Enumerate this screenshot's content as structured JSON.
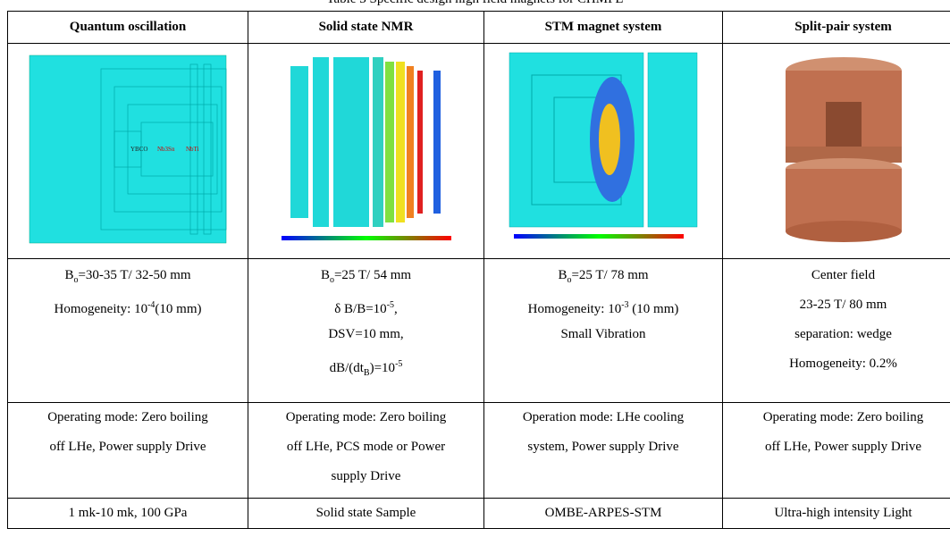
{
  "table": {
    "caption": "Table 3 Specific design high field magnets for CHMFL",
    "header": [
      "Quantum oscillation",
      "Solid state NMR",
      "STM magnet system",
      "Split-pair system"
    ],
    "image_labels": [
      "YBCO",
      "Nb3Sn",
      "NbTi"
    ],
    "specs": [
      [
        [
          {
            "text": "B"
          },
          {
            "sub": "o"
          },
          {
            "text": "=30-35 T/ 32-50 mm"
          }
        ],
        [
          {
            "text": "Homogeneity: 10"
          },
          {
            "sup": "-4"
          },
          {
            "text": "(10 mm)"
          }
        ]
      ],
      [
        [
          {
            "text": "B"
          },
          {
            "sub": "o"
          },
          {
            "text": "=25 T/ 54 mm"
          }
        ],
        [
          {
            "text": "δ B/B=10"
          },
          {
            "sup": "-5"
          },
          {
            "text": ","
          }
        ],
        [
          {
            "text": "DSV=10 mm,"
          }
        ],
        [
          {
            "text": "dB/(dt"
          },
          {
            "sub": "B"
          },
          {
            "text": ")=10"
          },
          {
            "sup": "-5"
          }
        ]
      ],
      [
        [
          {
            "text": "B"
          },
          {
            "sub": "o"
          },
          {
            "text": "=25 T/ 78 mm"
          }
        ],
        [
          {
            "text": "Homogeneity: 10"
          },
          {
            "sup": "-3"
          },
          {
            "text": " (10 mm)"
          }
        ],
        [
          {
            "text": "Small Vibration"
          }
        ]
      ],
      [
        [
          {
            "text": "Center field"
          }
        ],
        [
          {
            "text": "23-25 T/ 80 mm"
          }
        ],
        [
          {
            "text": "separation: wedge"
          }
        ],
        [
          {
            "text": "Homogeneity: 0.2%"
          }
        ]
      ]
    ],
    "modes": [
      [
        "Operating mode: Zero boiling",
        "off LHe, Power supply Drive"
      ],
      [
        "Operating mode: Zero boiling",
        "off LHe, PCS mode or Power",
        "supply Drive"
      ],
      [
        "Operation mode: LHe cooling",
        "system, Power supply Drive"
      ],
      [
        "Operating mode: Zero boiling",
        "off LHe, Power supply Drive"
      ]
    ],
    "applications": [
      "1 mk-10 mk, 100 GPa",
      "Solid state Sample",
      "OMBE-ARPES-STM",
      "Ultra-high intensity Light"
    ]
  }
}
